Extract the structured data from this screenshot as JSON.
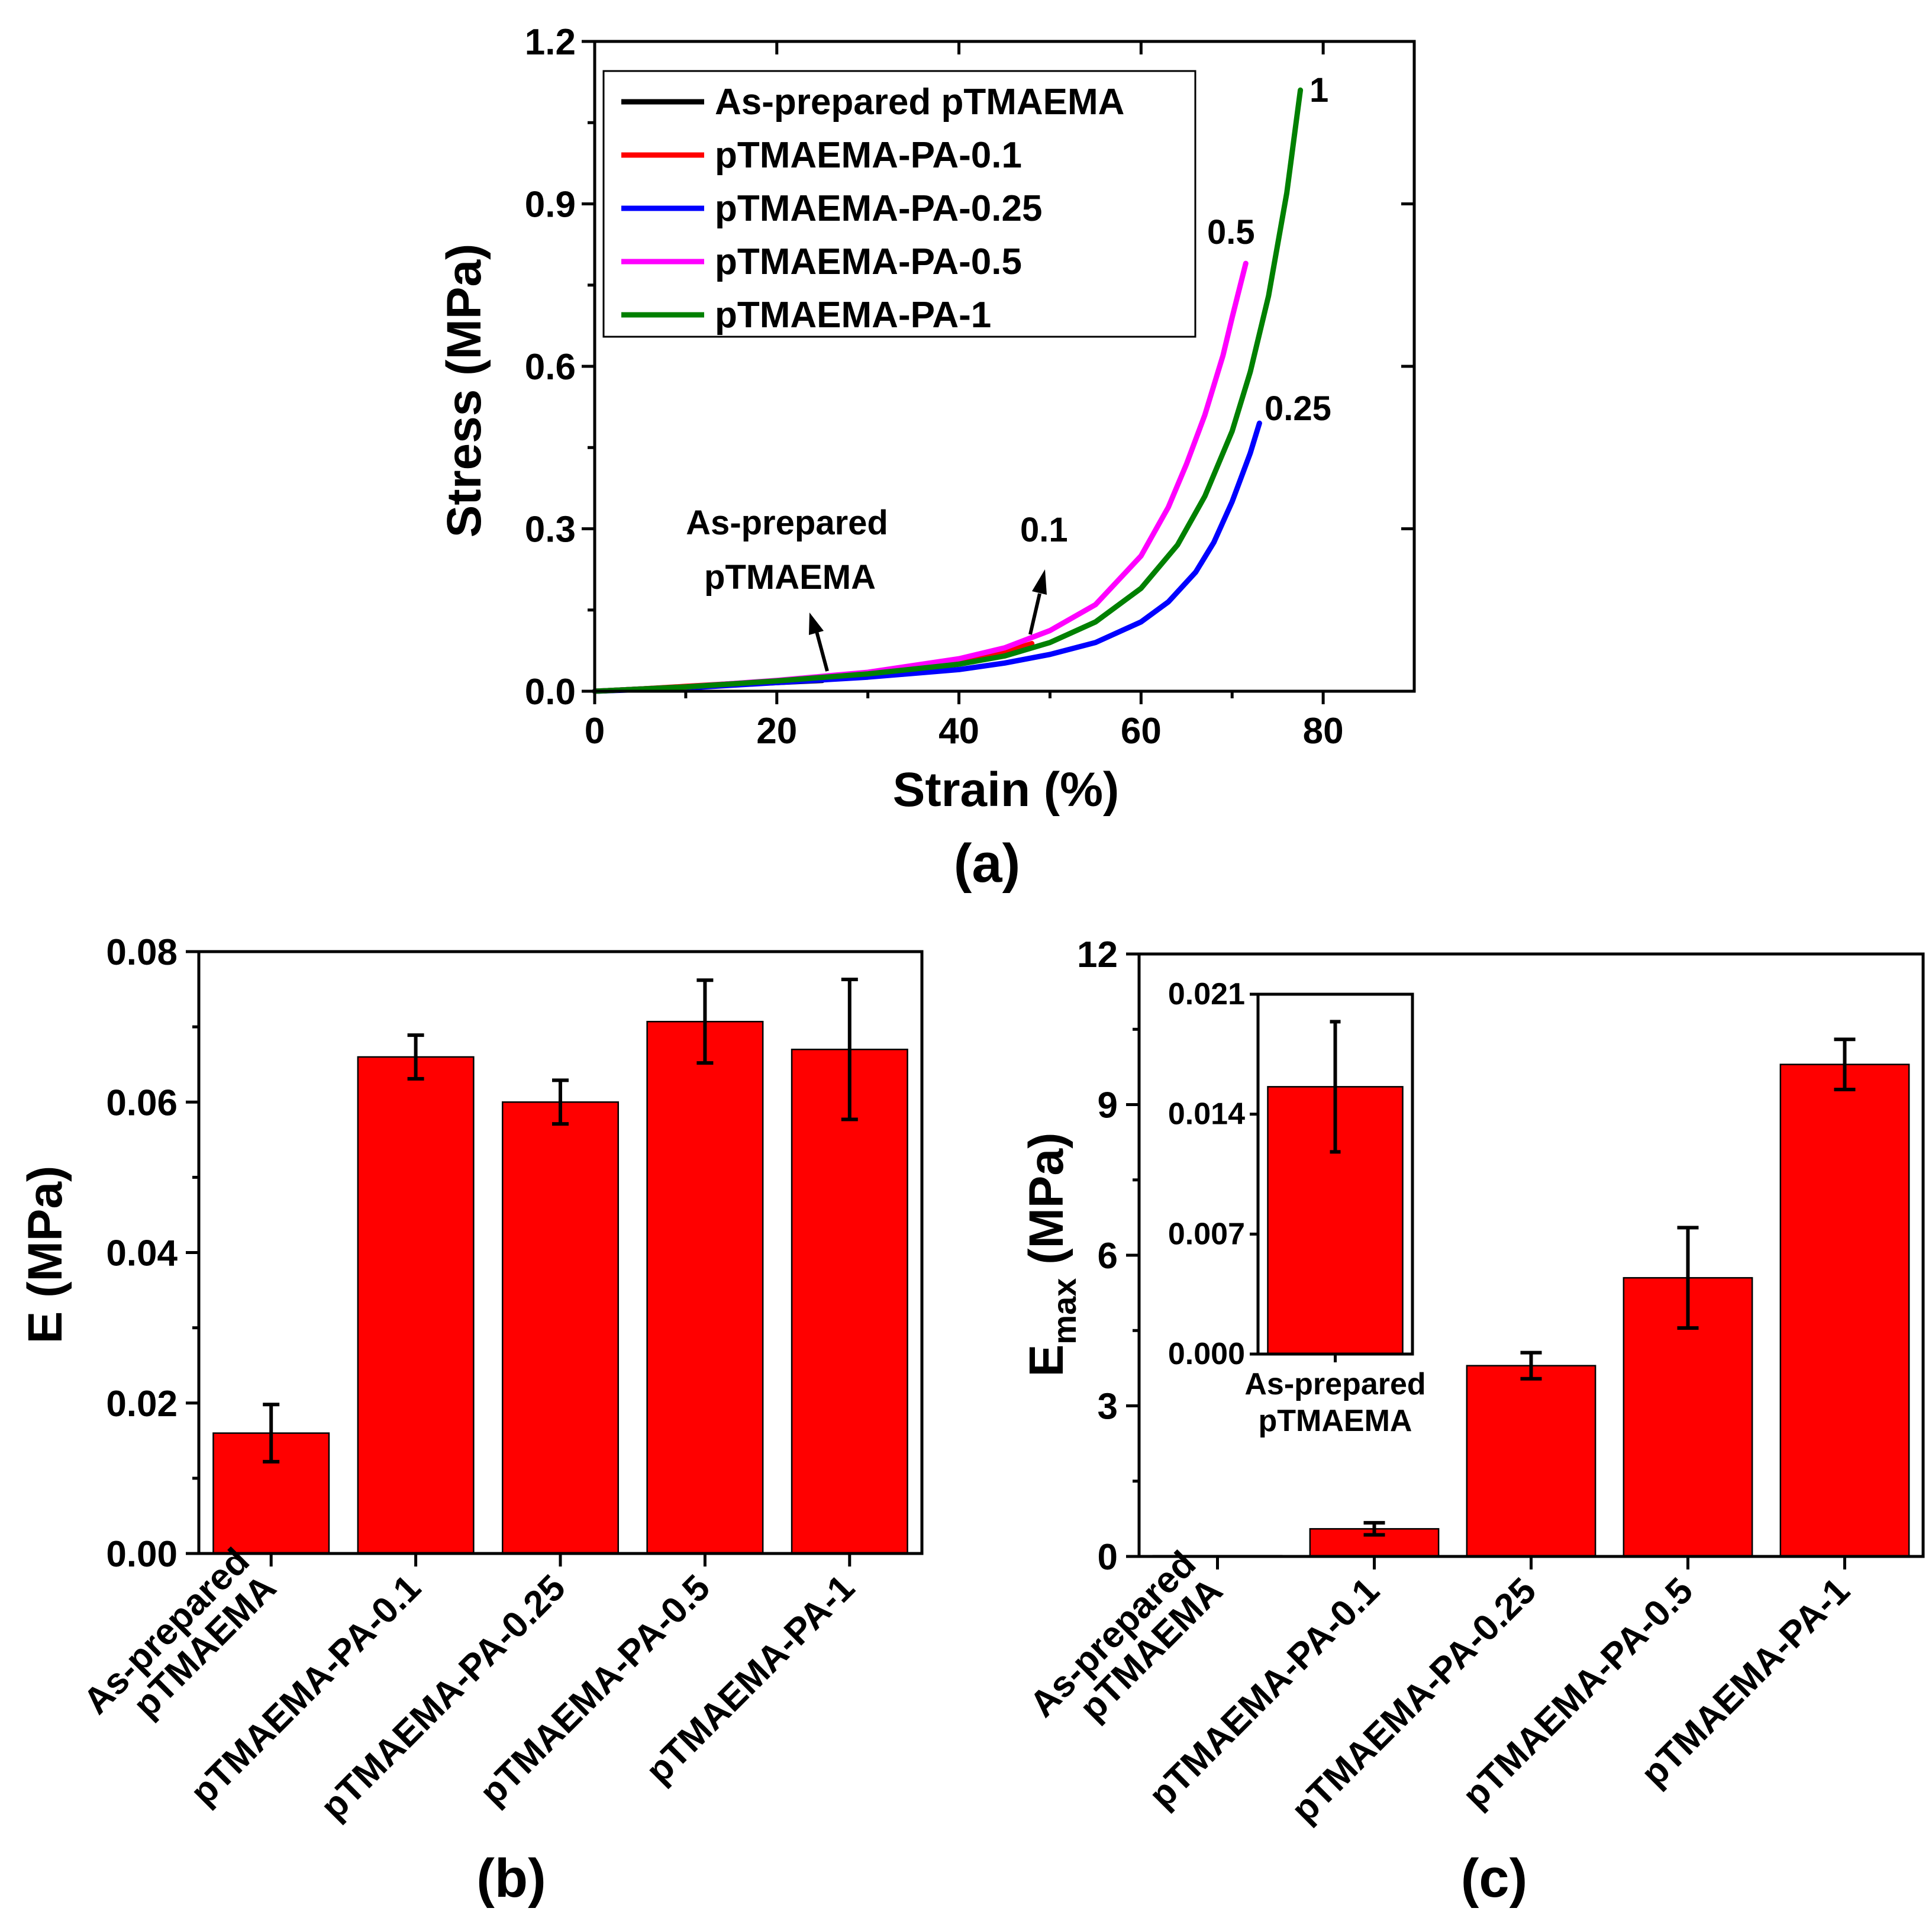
{
  "chart_data": [
    {
      "id": "a",
      "type": "line",
      "panel_label": "(a)",
      "xlabel": "Strain (%)",
      "ylabel": "Stress (MPa)",
      "xlim": [
        0,
        90
      ],
      "ylim": [
        0,
        1.2
      ],
      "xticks": [
        0,
        20,
        40,
        60,
        80
      ],
      "xtick_labels": [
        "0",
        "20",
        "40",
        "60",
        "80"
      ],
      "yticks": [
        0,
        0.3,
        0.6,
        0.9,
        1.2
      ],
      "ytick_labels": [
        "0.0",
        "0.3",
        "0.6",
        "0.9",
        "1.2"
      ],
      "legend_position": "top-left",
      "series": [
        {
          "name": "As-prepared pTMAEMA",
          "color": "#000000",
          "x": [
            0,
            5,
            10,
            15,
            20,
            25
          ],
          "y": [
            0.0,
            0.004,
            0.008,
            0.012,
            0.016,
            0.02
          ]
        },
        {
          "name": "pTMAEMA-PA-0.1",
          "color": "#ff0000",
          "x": [
            0,
            5,
            10,
            15,
            20,
            25,
            30,
            35,
            40,
            45,
            48
          ],
          "y": [
            0.0,
            0.004,
            0.009,
            0.014,
            0.019,
            0.025,
            0.032,
            0.042,
            0.055,
            0.072,
            0.088
          ]
        },
        {
          "name": "pTMAEMA-PA-0.25",
          "color": "#0000ff",
          "x": [
            0,
            10,
            20,
            30,
            40,
            45,
            50,
            55,
            60,
            63,
            66,
            68,
            70,
            72,
            73
          ],
          "y": [
            0.0,
            0.006,
            0.016,
            0.026,
            0.04,
            0.052,
            0.068,
            0.09,
            0.128,
            0.165,
            0.22,
            0.275,
            0.35,
            0.44,
            0.495
          ]
        },
        {
          "name": "pTMAEMA-PA-0.5",
          "color": "#ff00ff",
          "x": [
            0,
            10,
            20,
            30,
            40,
            45,
            50,
            55,
            60,
            63,
            65,
            67,
            69,
            70,
            71.5
          ],
          "y": [
            0.0,
            0.008,
            0.02,
            0.035,
            0.06,
            0.08,
            0.112,
            0.16,
            0.25,
            0.34,
            0.42,
            0.51,
            0.62,
            0.69,
            0.79
          ]
        },
        {
          "name": "pTMAEMA-PA-1",
          "color": "#008000",
          "x": [
            0,
            10,
            20,
            30,
            40,
            45,
            50,
            55,
            60,
            64,
            67,
            70,
            72,
            74,
            76,
            77.5
          ],
          "y": [
            0.0,
            0.008,
            0.019,
            0.032,
            0.05,
            0.065,
            0.09,
            0.128,
            0.19,
            0.27,
            0.36,
            0.48,
            0.59,
            0.73,
            0.92,
            1.11
          ]
        }
      ],
      "annotations": [
        {
          "text": "1",
          "x": 79.5,
          "y": 1.11
        },
        {
          "text": "0.5",
          "x": 67.5,
          "y": 0.83
        },
        {
          "text": "0.25",
          "x": 74,
          "y": 0.52
        },
        {
          "text": "0.1",
          "x": 50.5,
          "y": 0.29
        },
        {
          "text_lines": [
            "As-prepared",
            "pTMAEMA"
          ],
          "x": 21.5,
          "y": 0.3
        }
      ]
    },
    {
      "id": "b",
      "type": "bar",
      "panel_label": "(b)",
      "ylabel": "E (MPa)",
      "categories": [
        [
          "As-prepared",
          "pTMAEMA"
        ],
        [
          "pTMAEMA-PA-0.1"
        ],
        [
          "pTMAEMA-PA-0.25"
        ],
        [
          "pTMAEMA-PA-0.5"
        ],
        [
          "pTMAEMA-PA-1"
        ]
      ],
      "values": [
        0.016,
        0.066,
        0.06,
        0.0707,
        0.067
      ],
      "errors": [
        0.0038,
        0.0029,
        0.0029,
        0.0055,
        0.0093
      ],
      "ylim": [
        0,
        0.08
      ],
      "yticks": [
        0,
        0.02,
        0.04,
        0.06,
        0.08
      ],
      "ytick_labels": [
        "0.00",
        "0.02",
        "0.04",
        "0.06",
        "0.08"
      ],
      "bar_color": "#ff0000"
    },
    {
      "id": "c",
      "type": "bar",
      "panel_label": "(c)",
      "ylabel": "E",
      "ylabel_sub": "max",
      "ylabel_suffix": " (MPa)",
      "categories": [
        [
          "As-prepared",
          "pTMAEMA"
        ],
        [
          "pTMAEMA-PA-0.1"
        ],
        [
          "pTMAEMA-PA-0.25"
        ],
        [
          "pTMAEMA-PA-0.5"
        ],
        [
          "pTMAEMA-PA-1"
        ]
      ],
      "values": [
        0.0156,
        0.55,
        3.8,
        5.55,
        9.8
      ],
      "errors": [
        0.0,
        0.12,
        0.26,
        1.0,
        0.5
      ],
      "ylim": [
        0,
        12
      ],
      "yticks": [
        0,
        3,
        6,
        9,
        12
      ],
      "ytick_labels": [
        "0",
        "3",
        "6",
        "9",
        "12"
      ],
      "bar_color": "#ff0000",
      "inset": {
        "type": "bar",
        "categories": [
          [
            "As-prepared",
            "pTMAEMA"
          ]
        ],
        "values": [
          0.0156
        ],
        "errors": [
          0.0038
        ],
        "ylim": [
          0,
          0.021
        ],
        "yticks": [
          0,
          0.007,
          0.014,
          0.021
        ],
        "ytick_labels": [
          "0.000",
          "0.007",
          "0.014",
          "0.021"
        ]
      }
    }
  ]
}
